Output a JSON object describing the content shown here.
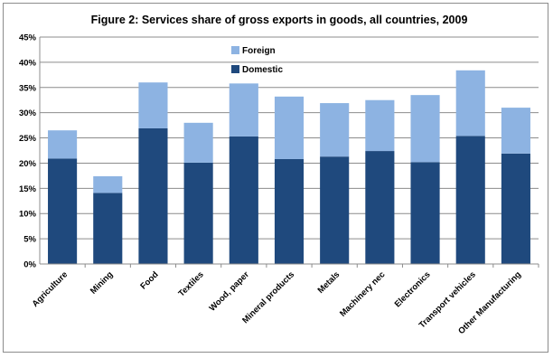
{
  "chart_data": {
    "type": "bar",
    "stacked": true,
    "title": "Figure 2: Services share of gross exports in goods, all countries, 2009",
    "xlabel": "",
    "ylabel": "",
    "ylim": [
      0,
      45
    ],
    "y_ticks": [
      "0%",
      "5%",
      "10%",
      "15%",
      "20%",
      "25%",
      "30%",
      "35%",
      "40%",
      "45%"
    ],
    "y_tick_values": [
      0,
      5,
      10,
      15,
      20,
      25,
      30,
      35,
      40,
      45
    ],
    "grid": true,
    "legend_position": "top-left",
    "categories": [
      "Agriculture",
      "Mining",
      "Food",
      "Textiles",
      "Wood, paper",
      "Mineral products",
      "Metals",
      "Machinery nec",
      "Electronics",
      "Transport vehicles",
      "Other Manufacturing"
    ],
    "series": [
      {
        "name": "Domestic",
        "color": "#1f497d",
        "values": [
          20.9,
          14.1,
          26.9,
          20.1,
          25.3,
          20.8,
          21.3,
          22.4,
          20.2,
          25.4,
          21.9
        ]
      },
      {
        "name": "Foreign",
        "color": "#8db3e2",
        "values": [
          5.6,
          3.3,
          9.1,
          7.9,
          10.5,
          12.4,
          10.6,
          10.1,
          13.3,
          13.0,
          9.1
        ]
      }
    ],
    "legend_order": [
      "Foreign",
      "Domestic"
    ]
  }
}
